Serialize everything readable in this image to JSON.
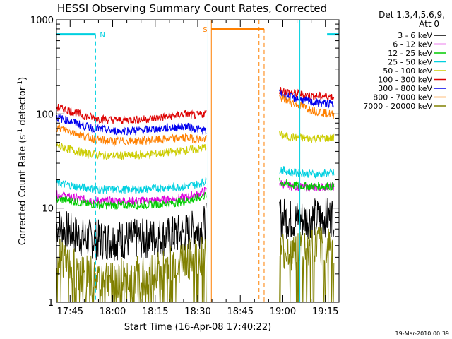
{
  "chart_data": {
    "type": "line",
    "title": "HESSI Observing Summary Count Rates, Corrected",
    "xlabel": "Start Time (16-Apr-08 17:40:22)",
    "ylabel": "Corrected Count Rate (s⁻¹ detector⁻¹)",
    "ylabel_main": "Corrected Count Rate (s",
    "ylabel_sup1": "-1",
    "ylabel_mid": " detector",
    "ylabel_sup2": "-1",
    "ylabel_end": ")",
    "yscale": "log",
    "ylim": [
      1,
      1000
    ],
    "xlim_minutes": [
      17.67,
      19.33
    ],
    "y_ticks": [
      {
        "value": 1,
        "label": "1"
      },
      {
        "value": 10,
        "label": "10"
      },
      {
        "value": 100,
        "label": "100"
      },
      {
        "value": 1000,
        "label": "1000"
      }
    ],
    "x_ticks": [
      {
        "value": 17.75,
        "label": "17:45"
      },
      {
        "value": 18.0,
        "label": "18:00"
      },
      {
        "value": 18.25,
        "label": "18:15"
      },
      {
        "value": 18.5,
        "label": "18:30"
      },
      {
        "value": 18.75,
        "label": "18:45"
      },
      {
        "value": 19.0,
        "label": "19:00"
      },
      {
        "value": 19.25,
        "label": "19:15"
      }
    ],
    "legend_header": [
      "Det 1,3,4,5,6,9,",
      "Att 0"
    ],
    "legend_placement": "right",
    "series": [
      {
        "name": "3 - 6 keV",
        "color": "#000000",
        "values": [
          [
            17.67,
            6.5
          ],
          [
            17.75,
            5.5
          ],
          [
            17.83,
            4.8
          ],
          [
            17.92,
            4.6
          ],
          [
            18.0,
            4.6
          ],
          [
            18.17,
            4.7
          ],
          [
            18.33,
            5.0
          ],
          [
            18.42,
            5.4
          ],
          [
            18.5,
            6.0
          ],
          [
            18.55,
            6.8
          ],
          [
            18.98,
            8.2
          ],
          [
            19.05,
            7.5
          ],
          [
            19.17,
            7.8
          ],
          [
            19.3,
            8.2
          ]
        ]
      },
      {
        "name": "6 - 12 keV",
        "color": "#dd00dd",
        "values": [
          [
            17.67,
            14.0
          ],
          [
            17.75,
            13.2
          ],
          [
            17.83,
            12.4
          ],
          [
            17.92,
            12.0
          ],
          [
            18.0,
            11.9
          ],
          [
            18.17,
            12.0
          ],
          [
            18.33,
            12.4
          ],
          [
            18.42,
            13.0
          ],
          [
            18.5,
            14.0
          ],
          [
            18.55,
            15.5
          ],
          [
            18.98,
            18.5
          ],
          [
            19.05,
            17.0
          ],
          [
            19.17,
            16.5
          ],
          [
            19.3,
            17.0
          ]
        ]
      },
      {
        "name": "12 - 25 keV",
        "color": "#00cc00",
        "values": [
          [
            17.67,
            12.5
          ],
          [
            17.75,
            12.0
          ],
          [
            17.83,
            11.2
          ],
          [
            17.92,
            10.8
          ],
          [
            18.0,
            10.7
          ],
          [
            18.17,
            10.8
          ],
          [
            18.33,
            11.2
          ],
          [
            18.42,
            11.8
          ],
          [
            18.5,
            12.7
          ],
          [
            18.55,
            13.8
          ],
          [
            18.98,
            19.0
          ],
          [
            19.05,
            17.5
          ],
          [
            19.17,
            17.0
          ],
          [
            19.3,
            17.2
          ]
        ]
      },
      {
        "name": "25 - 50 keV",
        "color": "#00d0e0",
        "values": [
          [
            17.67,
            18.5
          ],
          [
            17.75,
            17.5
          ],
          [
            17.83,
            16.5
          ],
          [
            17.92,
            15.8
          ],
          [
            18.0,
            15.7
          ],
          [
            18.17,
            15.8
          ],
          [
            18.33,
            16.5
          ],
          [
            18.42,
            17.0
          ],
          [
            18.5,
            18.0
          ],
          [
            18.55,
            19.5
          ],
          [
            18.98,
            26.0
          ],
          [
            19.05,
            24.0
          ],
          [
            19.17,
            23.0
          ],
          [
            19.3,
            23.5
          ]
        ]
      },
      {
        "name": "50 - 100 keV",
        "color": "#cccc00",
        "values": [
          [
            17.67,
            46.0
          ],
          [
            17.75,
            42.0
          ],
          [
            17.83,
            38.5
          ],
          [
            17.92,
            36.5
          ],
          [
            18.0,
            36.0
          ],
          [
            18.17,
            36.5
          ],
          [
            18.33,
            39.0
          ],
          [
            18.42,
            41.0
          ],
          [
            18.5,
            42.0
          ],
          [
            18.55,
            45.0
          ],
          [
            18.98,
            60.0
          ],
          [
            19.05,
            56.0
          ],
          [
            19.17,
            55.0
          ],
          [
            19.3,
            55.5
          ]
        ]
      },
      {
        "name": "100 - 300 keV",
        "color": "#dd0000",
        "values": [
          [
            17.67,
            118.0
          ],
          [
            17.75,
            108.0
          ],
          [
            17.83,
            96.0
          ],
          [
            17.92,
            89.0
          ],
          [
            18.0,
            86.0
          ],
          [
            18.17,
            87.0
          ],
          [
            18.33,
            94.0
          ],
          [
            18.42,
            100.0
          ],
          [
            18.5,
            96.0
          ],
          [
            18.55,
            102.0
          ],
          [
            18.98,
            180.0
          ],
          [
            19.05,
            168.0
          ],
          [
            19.17,
            155.0
          ],
          [
            19.3,
            152.0
          ]
        ]
      },
      {
        "name": "300 - 800 keV",
        "color": "#0000ee",
        "values": [
          [
            17.67,
            92.0
          ],
          [
            17.75,
            84.0
          ],
          [
            17.83,
            75.0
          ],
          [
            17.92,
            69.0
          ],
          [
            18.0,
            66.0
          ],
          [
            18.17,
            67.0
          ],
          [
            18.33,
            71.0
          ],
          [
            18.42,
            74.0
          ],
          [
            18.5,
            69.0
          ],
          [
            18.55,
            66.0
          ],
          [
            18.98,
            165.0
          ],
          [
            19.05,
            150.0
          ],
          [
            19.17,
            133.0
          ],
          [
            19.3,
            127.0
          ]
        ]
      },
      {
        "name": "800 - 7000 keV",
        "color": "#ff8000",
        "values": [
          [
            17.67,
            72.0
          ],
          [
            17.75,
            66.0
          ],
          [
            17.83,
            58.0
          ],
          [
            17.92,
            53.0
          ],
          [
            18.0,
            51.0
          ],
          [
            18.17,
            52.0
          ],
          [
            18.33,
            54.0
          ],
          [
            18.42,
            56.0
          ],
          [
            18.5,
            54.0
          ],
          [
            18.55,
            54.0
          ],
          [
            18.98,
            150.0
          ],
          [
            19.05,
            133.0
          ],
          [
            19.17,
            110.0
          ],
          [
            19.3,
            98.0
          ]
        ]
      },
      {
        "name": "7000 - 20000 keV",
        "color": "#808000",
        "values": [
          [
            17.67,
            3.2
          ],
          [
            17.75,
            2.6
          ],
          [
            17.83,
            2.0
          ],
          [
            17.92,
            1.8
          ],
          [
            18.0,
            1.8
          ],
          [
            18.17,
            1.9
          ],
          [
            18.33,
            2.4
          ],
          [
            18.42,
            2.8
          ],
          [
            18.5,
            2.9
          ],
          [
            18.55,
            3.1
          ],
          [
            18.98,
            3.3
          ],
          [
            19.05,
            3.5
          ],
          [
            19.17,
            3.8
          ],
          [
            19.3,
            4.2
          ]
        ]
      }
    ],
    "gaps_minutes": [
      [
        18.56,
        18.97
      ]
    ],
    "annotations": [
      {
        "label": "N",
        "color": "#00d0e0",
        "bar": [
          17.67,
          17.9
        ],
        "level": 700,
        "dashed_at": [
          17.9
        ]
      },
      {
        "label": "S",
        "color": "#ff8000",
        "bar": [
          18.58,
          18.89
        ],
        "level": 800,
        "dashed_at": [
          18.89
        ]
      },
      {
        "label": "",
        "color": "#00d0e0",
        "bar": [
          19.26,
          19.33
        ],
        "level": 700,
        "dashed_at": [
          19.33
        ]
      }
    ],
    "vertical_lines": [
      {
        "x": 17.67,
        "color": "#00d0e0",
        "style": "solid"
      },
      {
        "x": 18.56,
        "color": "#00d0e0",
        "style": "solid"
      },
      {
        "x": 18.58,
        "color": "#ff8000",
        "style": "solid"
      },
      {
        "x": 18.86,
        "color": "#ff8000",
        "style": "dashed"
      },
      {
        "x": 19.1,
        "color": "#00d0e0",
        "style": "solid"
      }
    ],
    "timestamp": "19-Mar-2010 00:39"
  }
}
